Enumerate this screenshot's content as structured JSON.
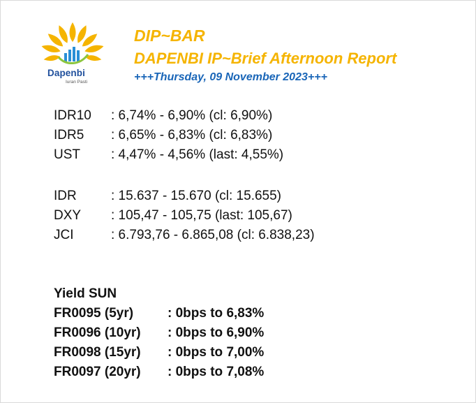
{
  "header": {
    "logo_name": "Dapenbi",
    "logo_tagline": "Iuran Pasti",
    "title": "DIP~BAR",
    "subtitle": "DAPENBI IP~Brief Afternoon Report",
    "date_line": "+++Thursday, 09 November 2023+++"
  },
  "colors": {
    "accent_yellow": "#f5b400",
    "accent_blue": "#1a66b8",
    "logo_blue": "#1f4f9c"
  },
  "yields": [
    {
      "label": "IDR10",
      "value": ": 6,74% - 6,90% (cl: 6,90%)"
    },
    {
      "label": "IDR5",
      "value": ": 6,65% - 6,83% (cl: 6,83%)"
    },
    {
      "label": "UST",
      "value": ": 4,47% - 4,56% (last: 4,55%)"
    }
  ],
  "markets": [
    {
      "label": "IDR",
      "value": ": 15.637 - 15.670 (cl: 15.655)"
    },
    {
      "label": "DXY",
      "value": ": 105,47 - 105,75 (last: 105,67)"
    },
    {
      "label": "JCI",
      "value": ": 6.793,76 - 6.865,08 (cl: 6.838,23)"
    }
  ],
  "sun": {
    "heading": "Yield SUN",
    "items": [
      {
        "label": "FR0095 (5yr)",
        "value": ": 0bps to 6,83%"
      },
      {
        "label": "FR0096 (10yr)",
        "value": ": 0bps to 6,90%"
      },
      {
        "label": "FR0098 (15yr)",
        "value": ": 0bps to 7,00%"
      },
      {
        "label": "FR0097 (20yr)",
        "value": ": 0bps to 7,08%"
      }
    ]
  }
}
